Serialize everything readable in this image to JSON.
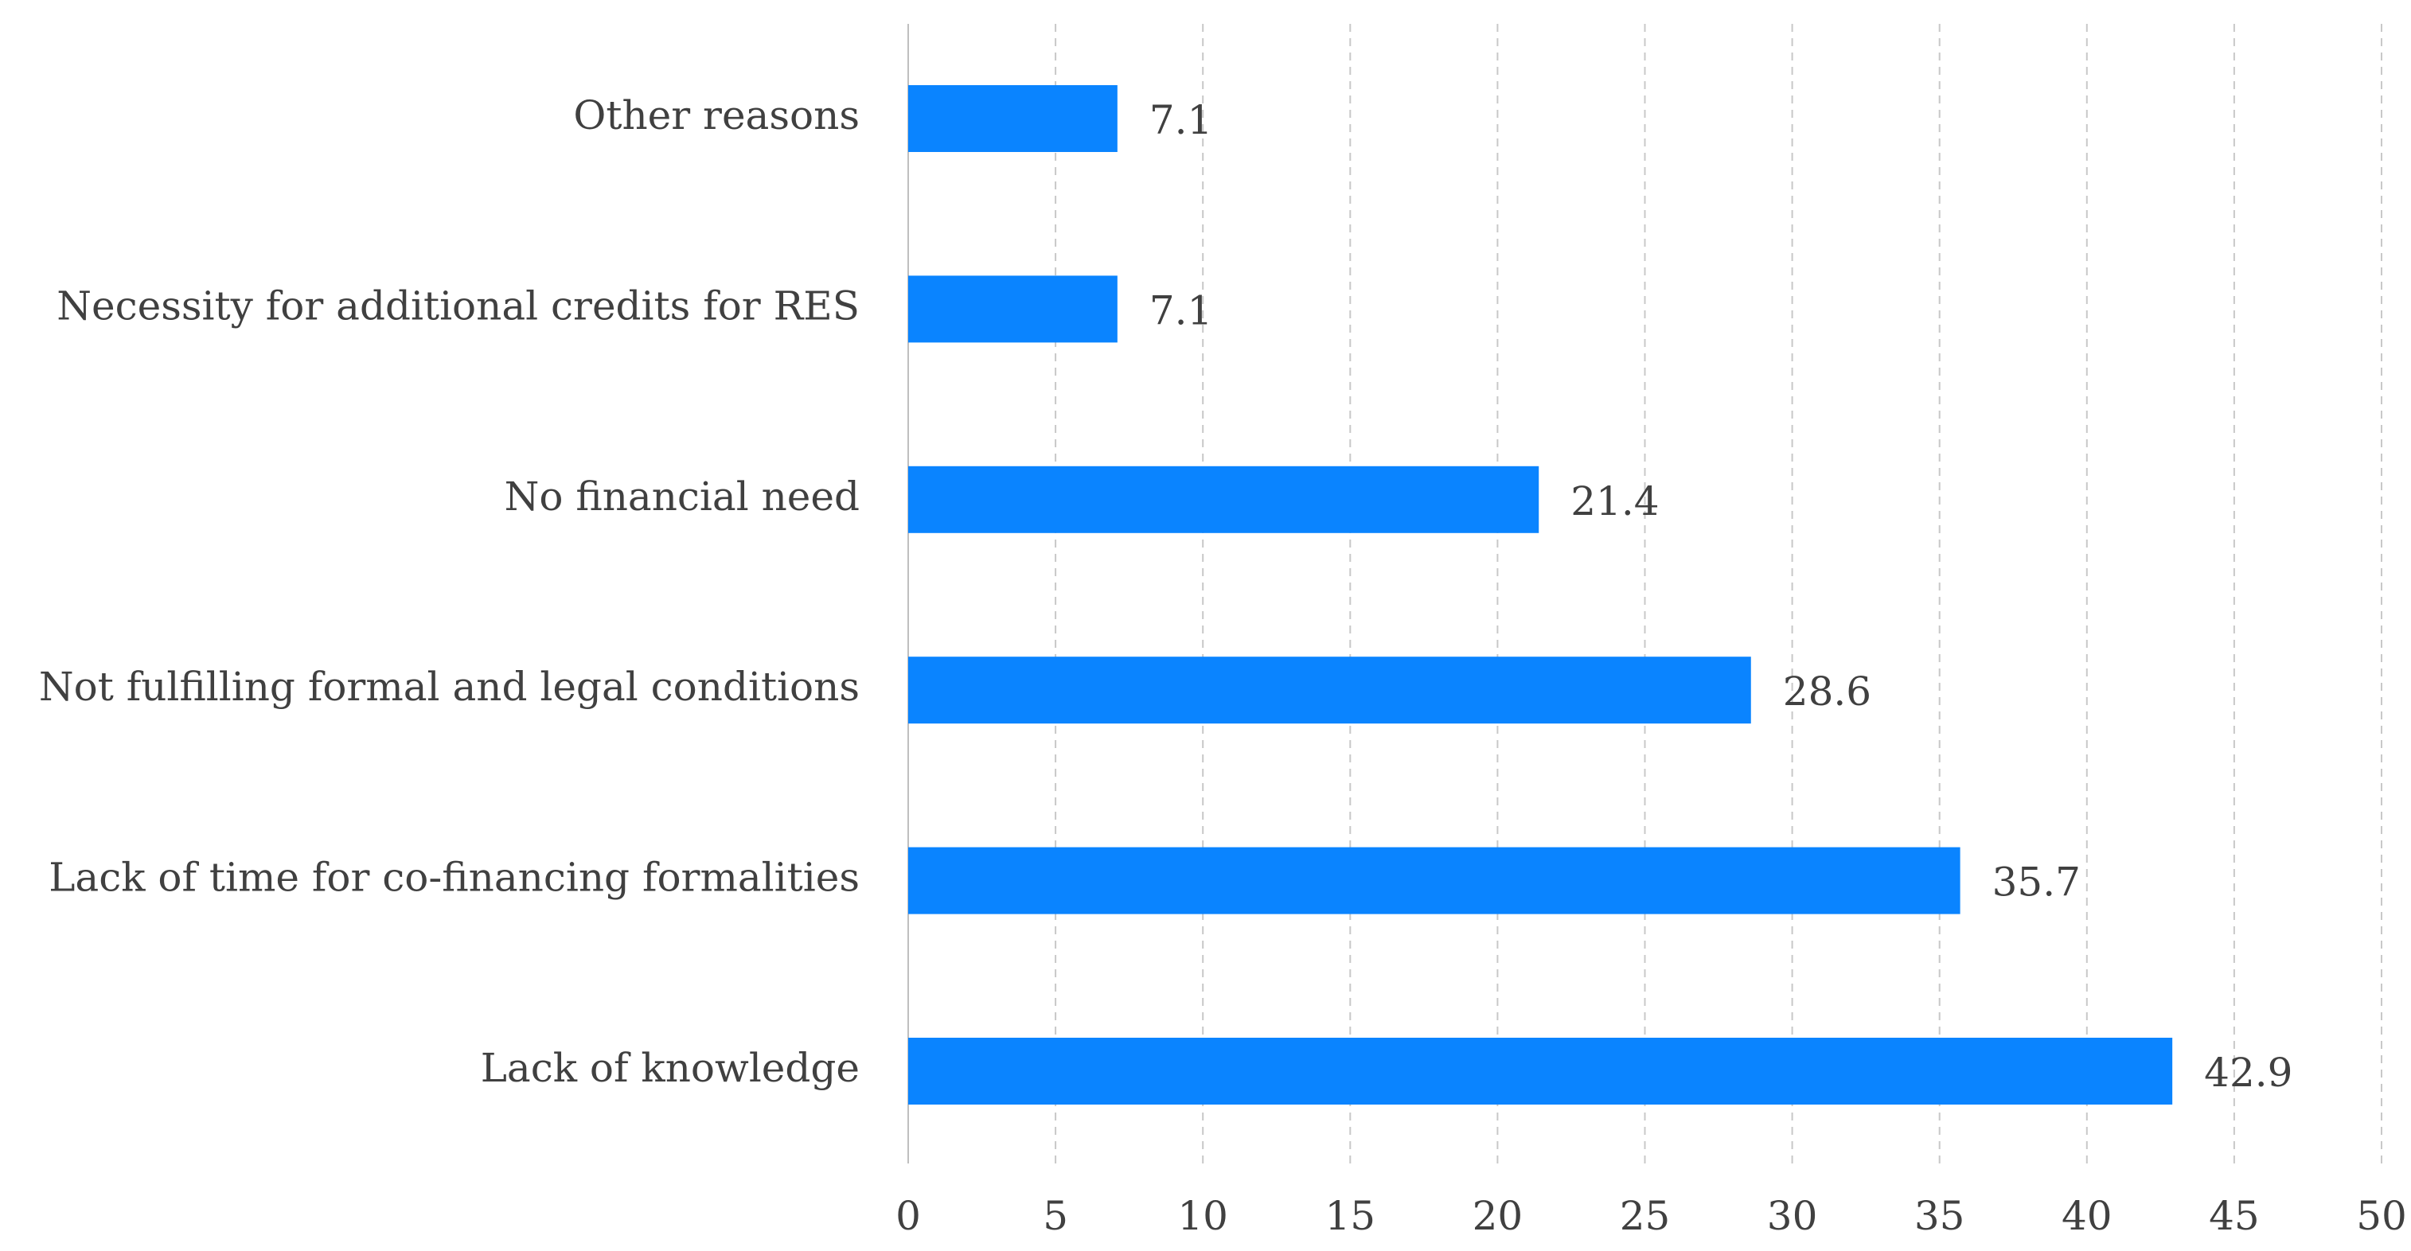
{
  "chart_data": {
    "type": "bar",
    "orientation": "horizontal",
    "title": "",
    "xlabel": "",
    "ylabel": "",
    "categories": [
      "Other reasons",
      "Necessity for additional credits for RES",
      "No financial need",
      "Not fulfilling formal and legal conditions",
      "Lack of time for co-financing formalities",
      "Lack of knowledge"
    ],
    "values": [
      7.1,
      7.1,
      21.4,
      28.6,
      35.7,
      42.9
    ],
    "value_labels": [
      "7.1",
      "7.1",
      "21.4",
      "28.6",
      "35.7",
      "42.9"
    ],
    "xlim": [
      0,
      50
    ],
    "x_ticks": [
      0,
      5,
      10,
      15,
      20,
      25,
      30,
      35,
      40,
      45,
      50
    ],
    "x_tick_labels": [
      "0",
      "5",
      "10",
      "15",
      "20",
      "25",
      "30",
      "35",
      "40",
      "45",
      "50"
    ],
    "grid": "vertical dashed",
    "legend": "none",
    "bar_color": "#0A84FF"
  }
}
